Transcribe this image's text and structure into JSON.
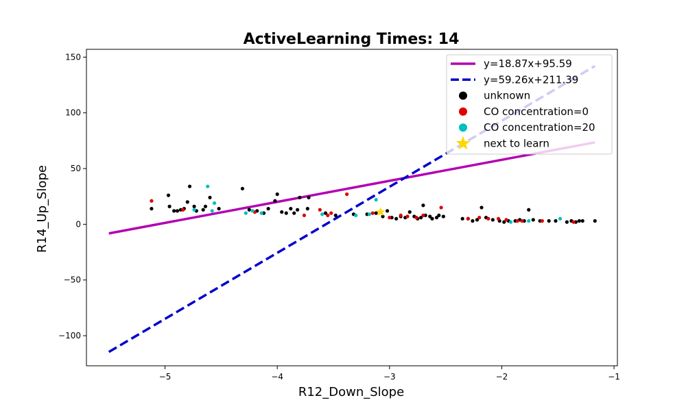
{
  "chart_data": {
    "type": "scatter",
    "title": "ActiveLearning Times: 14",
    "xlabel": "R12_Down_Slope",
    "ylabel": "R14_Up_Slope",
    "xlim": [
      -5.7,
      -0.97
    ],
    "ylim": [
      -127,
      157
    ],
    "xticks": [
      -5,
      -4,
      -3,
      -2,
      -1
    ],
    "xtick_labels": [
      "−5",
      "−4",
      "−3",
      "−2",
      "−1"
    ],
    "yticks": [
      -100,
      -50,
      0,
      50,
      100,
      150
    ],
    "ytick_labels": [
      "−100",
      "−50",
      "0",
      "50",
      "100",
      "150"
    ],
    "grid": false,
    "legend_position": "top-right",
    "lines": [
      {
        "name": "y=18.87x+95.59",
        "slope": 18.87,
        "intercept": 95.59,
        "x_range": [
          -5.5,
          -1.17
        ],
        "color": "#b300b3",
        "style": "solid"
      },
      {
        "name": "y=59.26x+211.39",
        "slope": 59.26,
        "intercept": 211.39,
        "x_range": [
          -5.5,
          -1.17
        ],
        "color": "#0000cc",
        "style": "dashed"
      }
    ],
    "series": [
      {
        "name": "unknown",
        "color": "#000000",
        "points": [
          [
            -5.12,
            14
          ],
          [
            -4.97,
            26
          ],
          [
            -4.96,
            16
          ],
          [
            -4.92,
            12
          ],
          [
            -4.89,
            12
          ],
          [
            -4.86,
            13
          ],
          [
            -4.83,
            14
          ],
          [
            -4.8,
            20
          ],
          [
            -4.78,
            34
          ],
          [
            -4.74,
            16
          ],
          [
            -4.72,
            12
          ],
          [
            -4.66,
            13
          ],
          [
            -4.64,
            16
          ],
          [
            -4.6,
            24
          ],
          [
            -4.52,
            14
          ],
          [
            -4.31,
            32
          ],
          [
            -4.25,
            13
          ],
          [
            -4.18,
            12
          ],
          [
            -4.12,
            10
          ],
          [
            -4.08,
            14
          ],
          [
            -4.02,
            21
          ],
          [
            -4.0,
            27
          ],
          [
            -3.96,
            11
          ],
          [
            -3.92,
            10
          ],
          [
            -3.88,
            14
          ],
          [
            -3.85,
            10
          ],
          [
            -3.82,
            13
          ],
          [
            -3.8,
            24
          ],
          [
            -3.73,
            14
          ],
          [
            -3.72,
            24
          ],
          [
            -3.57,
            10
          ],
          [
            -3.48,
            8
          ],
          [
            -3.32,
            9
          ],
          [
            -3.2,
            9
          ],
          [
            -3.12,
            10
          ],
          [
            -3.06,
            7
          ],
          [
            -3.02,
            12
          ],
          [
            -2.98,
            6
          ],
          [
            -2.94,
            5
          ],
          [
            -2.9,
            7
          ],
          [
            -2.86,
            6
          ],
          [
            -2.82,
            11
          ],
          [
            -2.78,
            7
          ],
          [
            -2.75,
            5
          ],
          [
            -2.72,
            6
          ],
          [
            -2.7,
            17
          ],
          [
            -2.68,
            8
          ],
          [
            -2.64,
            7
          ],
          [
            -2.62,
            5
          ],
          [
            -2.58,
            6
          ],
          [
            -2.56,
            8
          ],
          [
            -2.52,
            7
          ],
          [
            -2.35,
            5
          ],
          [
            -2.3,
            5
          ],
          [
            -2.26,
            3
          ],
          [
            -2.22,
            4
          ],
          [
            -2.18,
            15
          ],
          [
            -2.14,
            6
          ],
          [
            -2.08,
            4
          ],
          [
            -2.02,
            3
          ],
          [
            -1.98,
            2
          ],
          [
            -1.94,
            3
          ],
          [
            -1.88,
            3
          ],
          [
            -1.84,
            4
          ],
          [
            -1.8,
            3
          ],
          [
            -1.76,
            13
          ],
          [
            -1.72,
            4
          ],
          [
            -1.66,
            3
          ],
          [
            -1.58,
            3
          ],
          [
            -1.52,
            3
          ],
          [
            -1.42,
            2
          ],
          [
            -1.38,
            3
          ],
          [
            -1.34,
            2
          ],
          [
            -1.31,
            3
          ],
          [
            -1.28,
            3
          ],
          [
            -1.17,
            3
          ]
        ]
      },
      {
        "name": "CO concentration=0",
        "color": "#e00000",
        "points": [
          [
            -5.12,
            21
          ],
          [
            -4.84,
            13
          ],
          [
            -4.2,
            11
          ],
          [
            -3.76,
            8
          ],
          [
            -3.62,
            13
          ],
          [
            -3.55,
            8
          ],
          [
            -3.52,
            10
          ],
          [
            -3.38,
            27
          ],
          [
            -3.15,
            10
          ],
          [
            -3.0,
            6
          ],
          [
            -2.9,
            8
          ],
          [
            -2.84,
            7
          ],
          [
            -2.76,
            6
          ],
          [
            -2.7,
            8
          ],
          [
            -2.54,
            15
          ],
          [
            -2.3,
            5
          ],
          [
            -2.2,
            6
          ],
          [
            -2.12,
            5
          ],
          [
            -2.03,
            5
          ],
          [
            -1.96,
            4
          ],
          [
            -1.86,
            3
          ],
          [
            -1.82,
            3
          ],
          [
            -1.64,
            3
          ],
          [
            -1.36,
            2
          ]
        ]
      },
      {
        "name": "CO concentration=20",
        "color": "#00bfbf",
        "points": [
          [
            -4.74,
            13
          ],
          [
            -4.62,
            34
          ],
          [
            -4.58,
            12
          ],
          [
            -4.56,
            19
          ],
          [
            -4.28,
            10
          ],
          [
            -4.22,
            12
          ],
          [
            -4.14,
            10
          ],
          [
            -3.6,
            9
          ],
          [
            -3.3,
            8
          ],
          [
            -3.18,
            9
          ],
          [
            -3.12,
            22
          ],
          [
            -1.92,
            2
          ],
          [
            -1.76,
            3
          ],
          [
            -1.48,
            5
          ]
        ]
      },
      {
        "name": "next to learn",
        "color": "#ffd700",
        "marker": "star",
        "points": [
          [
            -3.08,
            11
          ]
        ]
      }
    ]
  }
}
